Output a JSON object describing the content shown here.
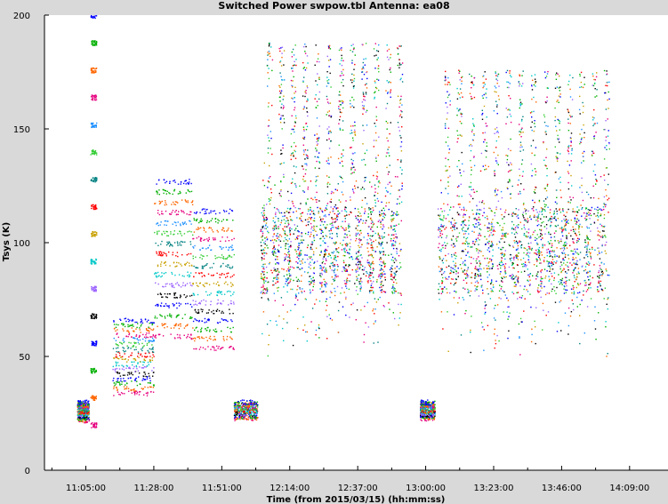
{
  "window": {
    "title": "Switched Power  swpow.tbl   Antenna: ea08"
  },
  "chart_data": {
    "type": "scatter",
    "title": "Switched Power  swpow.tbl   Antenna: ea08",
    "xlabel": "Time (from 2015/03/15) (hh:mm:ss)",
    "ylabel": "Tsys (K)",
    "ylim": [
      0,
      200
    ],
    "xlim": [
      "10:51:00",
      "14:22:00"
    ],
    "x_ticks": [
      "11:05:00",
      "11:28:00",
      "11:51:00",
      "12:14:00",
      "12:37:00",
      "13:00:00",
      "13:23:00",
      "13:46:00",
      "14:09:00"
    ],
    "y_ticks": [
      0,
      50,
      100,
      150,
      200
    ],
    "grid": false,
    "legend": "none",
    "series_colors": [
      "#e6007e",
      "#ff6600",
      "#00b000",
      "#0000ff",
      "#000000",
      "#9c64ff",
      "#00c8c8",
      "#c8a000",
      "#ff0000",
      "#008080",
      "#32cd32",
      "#1e90ff"
    ],
    "segments": [
      {
        "start": "11:02:00",
        "end": "11:06:00",
        "tsys_low": 22,
        "tsys_high": 30
      },
      {
        "start": "11:06:30",
        "end": "11:08:30",
        "tsys_low": 20,
        "tsys_high": 200
      },
      {
        "start": "11:14:00",
        "end": "11:28:00",
        "tsys_low": 34,
        "tsys_high": 66
      },
      {
        "start": "11:28:00",
        "end": "11:41:00",
        "tsys_low": 59,
        "tsys_high": 127
      },
      {
        "start": "11:41:00",
        "end": "11:55:00",
        "tsys_low": 54,
        "tsys_high": 114
      },
      {
        "start": "11:55:00",
        "end": "12:03:00",
        "tsys_low": 23,
        "tsys_high": 30
      },
      {
        "start": "12:04:00",
        "end": "12:52:00",
        "tsys_low": 42,
        "tsys_high": 192
      },
      {
        "start": "12:58:00",
        "end": "13:03:00",
        "tsys_low": 23,
        "tsys_high": 30
      },
      {
        "start": "13:04:00",
        "end": "14:02:00",
        "tsys_low": 42,
        "tsys_high": 180
      }
    ]
  }
}
